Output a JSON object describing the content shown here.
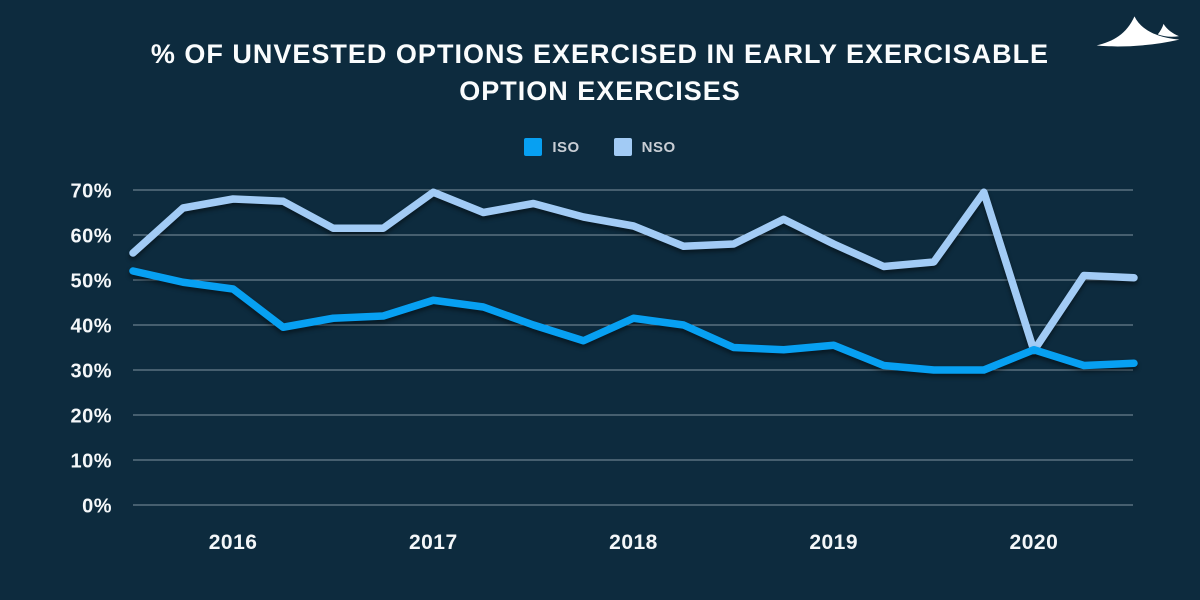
{
  "page": {
    "background": "#0D2B3E"
  },
  "header": {
    "title_line1": "% OF UNVESTED OPTIONS EXERCISED IN EARLY EXERCISABLE",
    "title_line2": "OPTION EXERCISES",
    "logo_icon": "dunes-logo"
  },
  "legend": [
    {
      "label": "ISO",
      "color": "#07A0F2"
    },
    {
      "label": "NSO",
      "color": "#A2CBF5"
    }
  ],
  "chart_data": {
    "type": "line",
    "title": "% OF UNVESTED OPTIONS EXERCISED IN EARLY EXERCISABLE OPTION EXERCISES",
    "xlabel": "",
    "ylabel": "",
    "ylim": [
      0,
      70
    ],
    "grid": true,
    "legend_position": "top",
    "y_ticks": [
      "0%",
      "10%",
      "20%",
      "30%",
      "40%",
      "50%",
      "60%",
      "70%"
    ],
    "x_labels": [
      "2016",
      "2017",
      "2018",
      "2019",
      "2020"
    ],
    "x_label_indices": [
      2,
      6,
      10,
      14,
      18
    ],
    "series": [
      {
        "name": "ISO",
        "color": "#07A0F2",
        "values": [
          52,
          49.5,
          48,
          39.5,
          41.5,
          42,
          45.5,
          44,
          40,
          36.5,
          41.5,
          40,
          35,
          34.5,
          35.5,
          31,
          30,
          30,
          34.5,
          31,
          31.5
        ]
      },
      {
        "name": "NSO",
        "color": "#A2CBF5",
        "values": [
          56,
          66,
          68,
          67.5,
          61.5,
          61.5,
          69.5,
          65,
          67,
          64,
          62,
          57.5,
          58,
          63.5,
          58,
          53,
          54,
          69.5,
          34.3,
          51,
          50.5
        ]
      }
    ]
  }
}
